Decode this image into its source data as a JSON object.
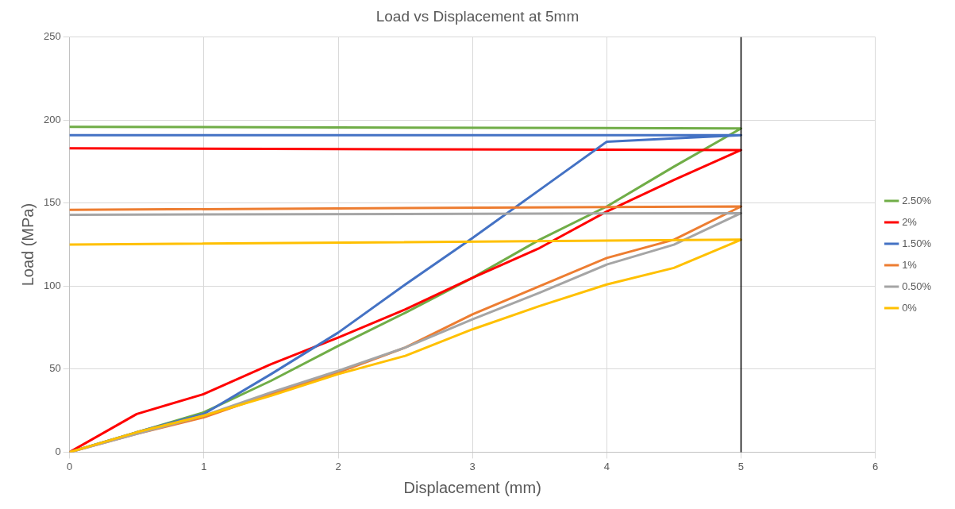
{
  "chart_data": {
    "type": "line",
    "title": "Load vs Displacement at 5mm",
    "xlabel": "Displacement (mm)",
    "ylabel": "Load (MPa)",
    "x": [
      0,
      0.5,
      1,
      1.5,
      2,
      2.5,
      3,
      3.5,
      4,
      4.5,
      5,
      0
    ],
    "series": [
      {
        "name": "2.50%",
        "color": "#70ad47",
        "values": [
          0,
          12,
          24,
          43,
          64,
          84,
          105,
          128,
          148,
          172,
          195,
          196
        ]
      },
      {
        "name": "2%",
        "color": "#ff0000",
        "values": [
          0,
          23,
          35,
          53,
          69,
          86,
          105,
          123,
          145,
          164,
          182,
          183
        ]
      },
      {
        "name": "1.50%",
        "color": "#4472c4",
        "values": [
          0,
          12,
          23,
          47,
          72,
          101,
          129,
          158,
          187,
          189,
          191,
          191
        ]
      },
      {
        "name": "1%",
        "color": "#ed7d31",
        "values": [
          0,
          11,
          21,
          35,
          48,
          63,
          83,
          100,
          117,
          128,
          148,
          146
        ]
      },
      {
        "name": "0.50%",
        "color": "#a5a5a5",
        "values": [
          0,
          11,
          22,
          36,
          49,
          63,
          80,
          96,
          113,
          125,
          144,
          143
        ]
      },
      {
        "name": "0%",
        "color": "#ffc000",
        "values": [
          0,
          12,
          22,
          34,
          47,
          58,
          74,
          88,
          101,
          111,
          128,
          125
        ]
      }
    ],
    "xlim": [
      0,
      6
    ],
    "xticks": [
      0,
      1,
      2,
      3,
      4,
      5,
      6
    ],
    "ylim": [
      0,
      250
    ],
    "yticks": [
      0,
      50,
      100,
      150,
      200,
      250
    ],
    "ref_lines": [
      {
        "axis": "x",
        "value": 5,
        "color": "#000000"
      }
    ],
    "grid": true,
    "legend": "right",
    "marker": "none",
    "line_style": "solid"
  }
}
